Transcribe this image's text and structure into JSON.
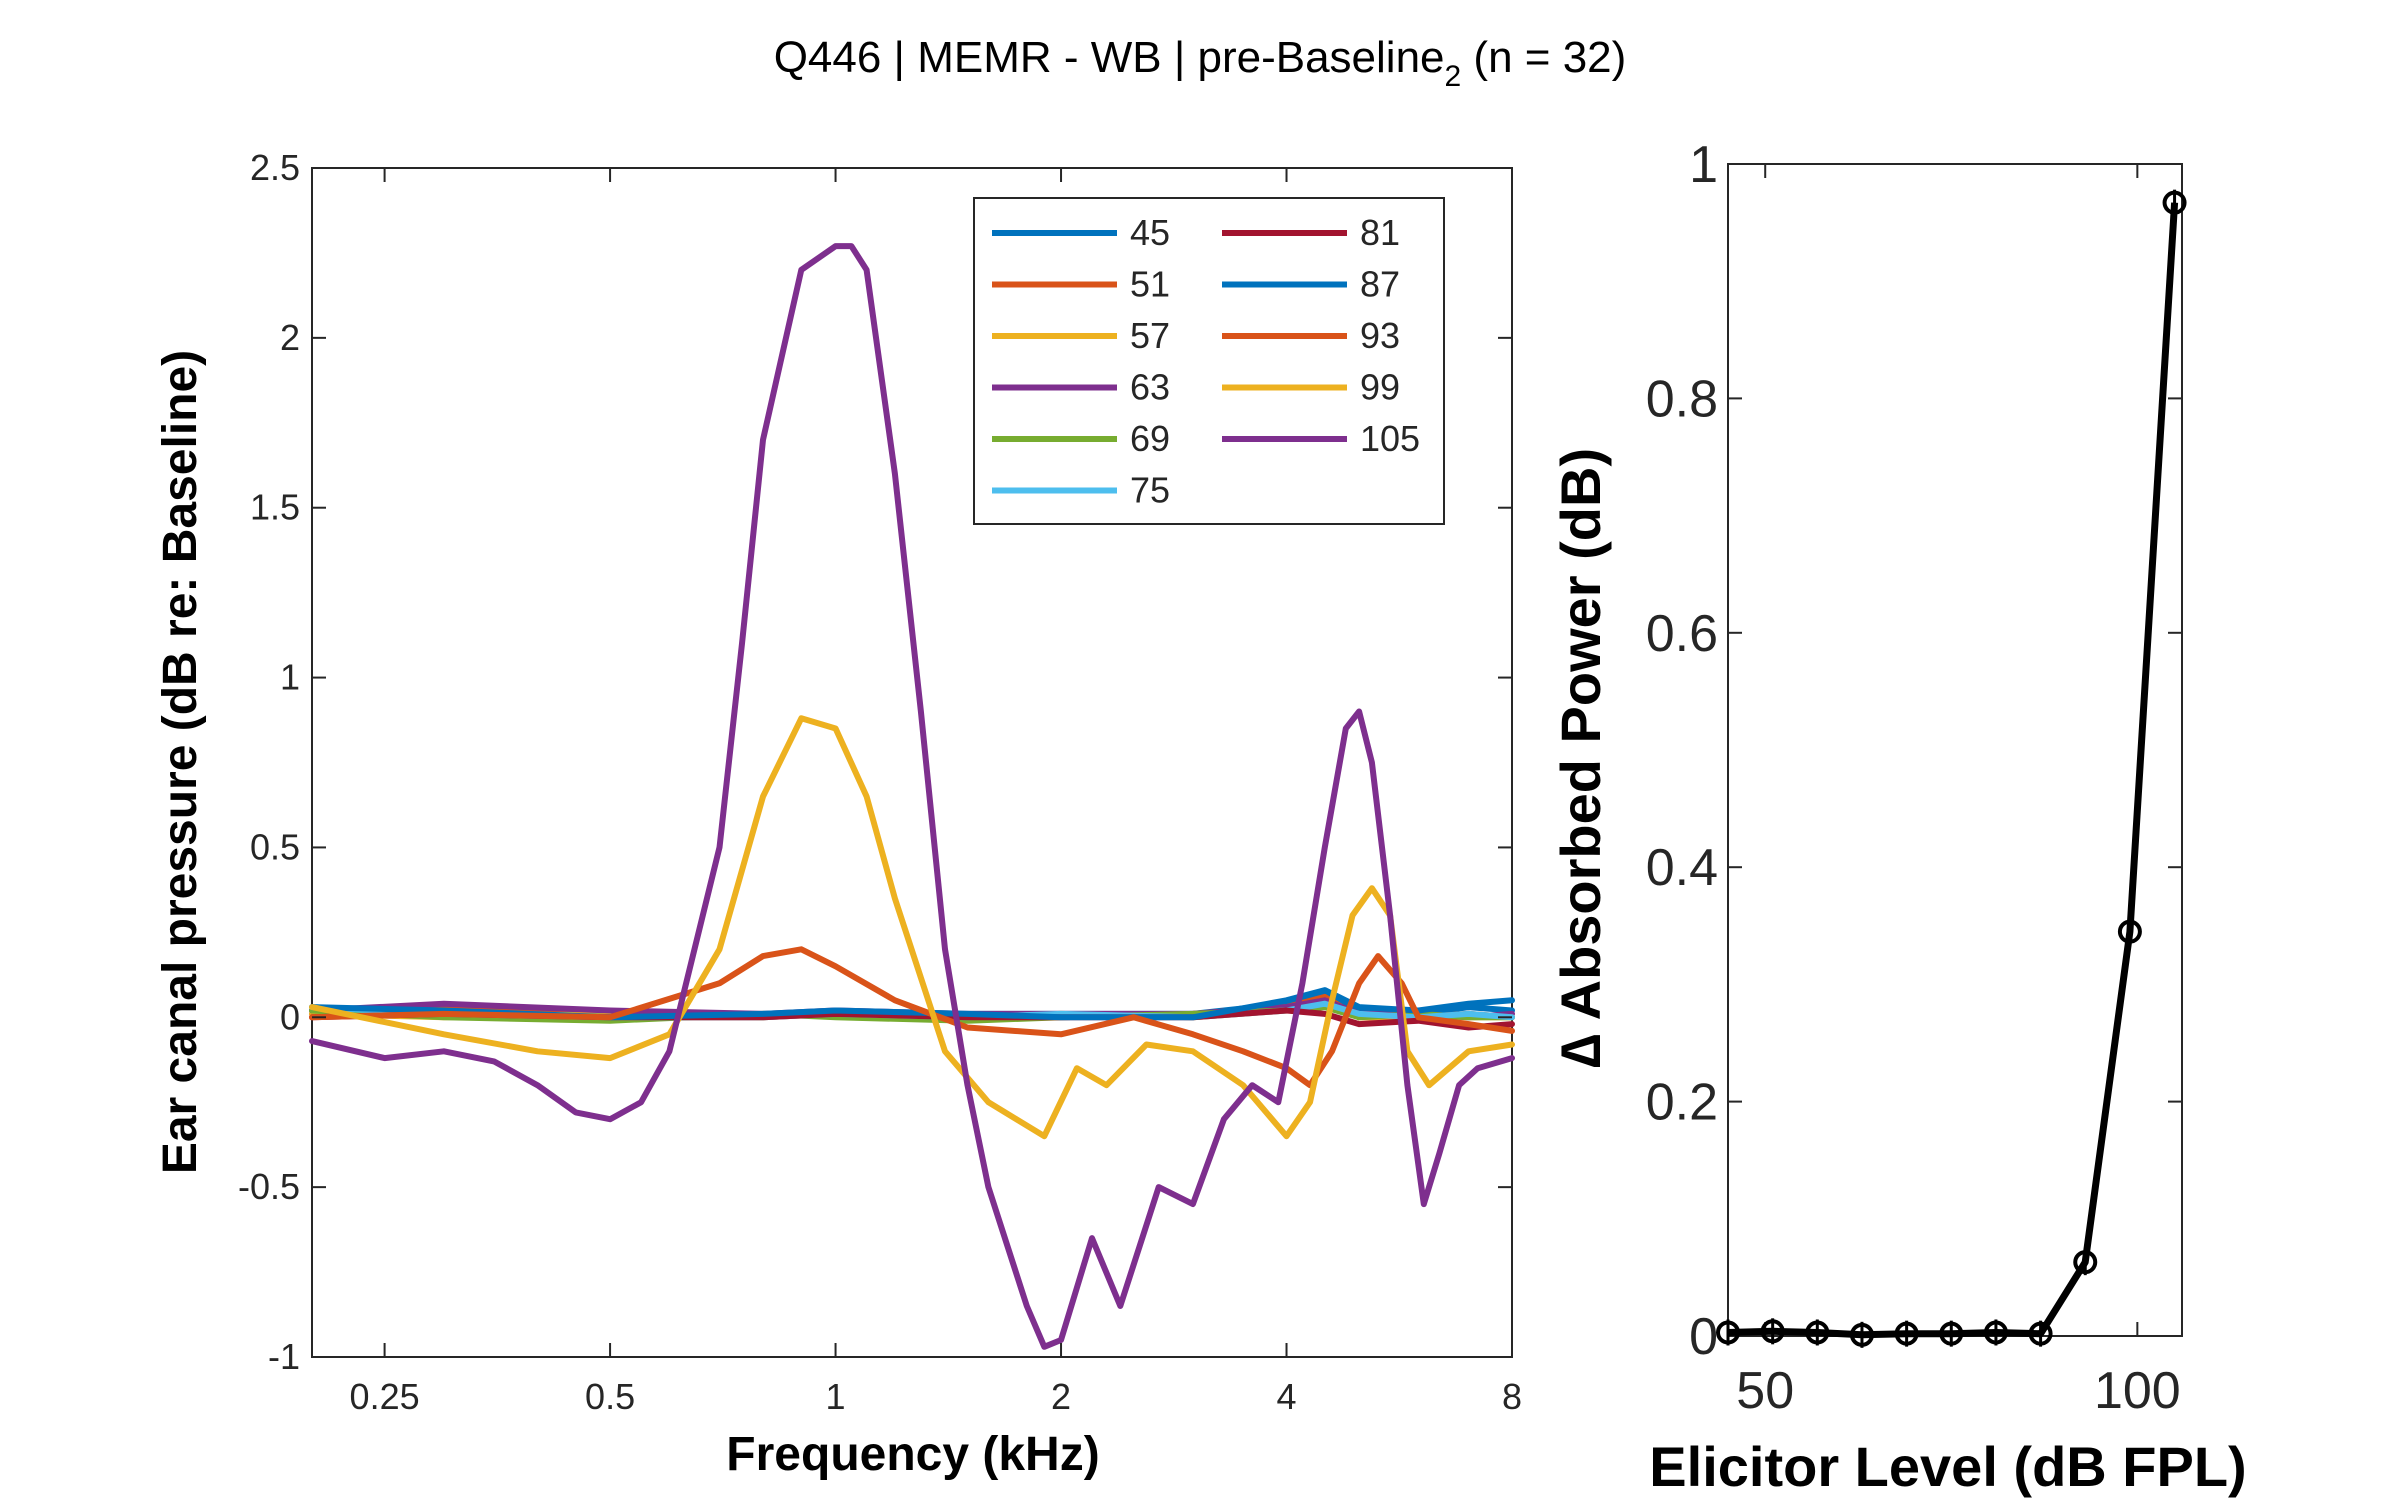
{
  "title_main": "Q446 | MEMR - WB | pre-Baseline",
  "title_sub": "2",
  "title_tail": " (n = 32)",
  "colors": {
    "s45": "#0072BD",
    "s51": "#D95319",
    "s57": "#EDB120",
    "s63": "#7E2F8E",
    "s69": "#77AC30",
    "s75": "#4DBEEE",
    "s81": "#A2142F",
    "axis": "#262626",
    "right_line": "#000000"
  },
  "chart_data": [
    {
      "type": "line",
      "title": "Q446 | MEMR - WB | pre-Baseline2 (n = 32)",
      "xlabel": "Frequency (kHz)",
      "ylabel": "Ear canal pressure (dB re: Baseline)",
      "xscale": "log",
      "xlim": [
        0.2,
        8
      ],
      "ylim": [
        -1,
        2.5
      ],
      "xticks": [
        0.25,
        0.5,
        1,
        2,
        4,
        8
      ],
      "xticklabels": [
        "0.25",
        "0.5",
        "1",
        "2",
        "4",
        "8"
      ],
      "yticks": [
        -1,
        -0.5,
        0,
        0.5,
        1,
        1.5,
        2,
        2.5
      ],
      "yticklabels": [
        "-1",
        "-0.5",
        "0",
        "0.5",
        "1",
        "1.5",
        "2",
        "2.5"
      ],
      "legend_position": "top-right",
      "series": [
        {
          "name": "45",
          "color_key": "s45",
          "x": [
            0.2,
            0.3,
            0.5,
            0.8,
            1,
            1.5,
            2,
            3,
            4,
            4.5,
            5,
            6,
            7,
            8
          ],
          "y": [
            0.02,
            0.02,
            0.01,
            0.01,
            0.01,
            0.01,
            0.01,
            0.01,
            0.04,
            0.07,
            0.02,
            0.01,
            0.03,
            0.02
          ]
        },
        {
          "name": "51",
          "color_key": "s51",
          "x": [
            0.2,
            0.3,
            0.5,
            0.8,
            1,
            1.5,
            2,
            3,
            4,
            4.5,
            5,
            6,
            7,
            8
          ],
          "y": [
            0.01,
            0.03,
            0.0,
            0.0,
            0.01,
            0.0,
            0.0,
            0.01,
            0.03,
            0.06,
            0.0,
            0.0,
            0.01,
            0.0
          ]
        },
        {
          "name": "57",
          "color_key": "s57",
          "x": [
            0.2,
            0.3,
            0.5,
            0.8,
            1,
            1.5,
            2,
            3,
            4,
            4.5,
            5,
            6,
            7,
            8
          ],
          "y": [
            0.01,
            0.0,
            0.01,
            0.0,
            0.02,
            0.0,
            0.01,
            0.0,
            0.02,
            0.04,
            0.0,
            0.0,
            0.0,
            0.0
          ]
        },
        {
          "name": "63",
          "color_key": "s63",
          "x": [
            0.2,
            0.3,
            0.5,
            0.8,
            1,
            1.5,
            2,
            3,
            4,
            4.5,
            5,
            6,
            7,
            8
          ],
          "y": [
            0.02,
            0.04,
            0.02,
            0.01,
            0.02,
            0.01,
            0.01,
            0.01,
            0.03,
            0.05,
            0.01,
            0.01,
            0.0,
            0.01
          ]
        },
        {
          "name": "69",
          "color_key": "s69",
          "x": [
            0.2,
            0.3,
            0.5,
            0.8,
            1,
            1.5,
            2,
            3,
            4,
            4.5,
            5,
            6,
            7,
            8
          ],
          "y": [
            0.02,
            0.0,
            -0.01,
            0.01,
            0.0,
            -0.01,
            0.0,
            0.01,
            0.02,
            0.03,
            0.0,
            0.01,
            0.0,
            0.0
          ]
        },
        {
          "name": "75",
          "color_key": "s75",
          "x": [
            0.2,
            0.3,
            0.5,
            0.8,
            1,
            1.5,
            2,
            3,
            4,
            4.5,
            5,
            6,
            7,
            8
          ],
          "y": [
            0.03,
            0.01,
            0.0,
            0.0,
            0.01,
            0.0,
            0.01,
            0.0,
            0.02,
            0.04,
            0.01,
            0.0,
            0.01,
            0.0
          ]
        },
        {
          "name": "81",
          "color_key": "s81",
          "x": [
            0.2,
            0.3,
            0.5,
            0.8,
            1,
            1.5,
            2,
            3,
            4,
            4.5,
            5,
            6,
            7,
            8
          ],
          "y": [
            0.0,
            0.01,
            0.0,
            0.0,
            0.01,
            0.0,
            0.0,
            0.0,
            0.02,
            0.01,
            -0.02,
            -0.01,
            -0.03,
            -0.02
          ]
        },
        {
          "name": "87",
          "color_key": "s45",
          "x": [
            0.2,
            0.3,
            0.5,
            0.8,
            1,
            1.5,
            2,
            3,
            4,
            4.5,
            5,
            6,
            7,
            8
          ],
          "y": [
            0.03,
            0.02,
            0.0,
            0.01,
            0.02,
            0.01,
            0.0,
            0.0,
            0.05,
            0.08,
            0.03,
            0.02,
            0.04,
            0.05
          ]
        },
        {
          "name": "93",
          "color_key": "s51",
          "x": [
            0.2,
            0.3,
            0.5,
            0.7,
            0.8,
            0.9,
            1.0,
            1.2,
            1.5,
            2,
            2.5,
            3,
            3.5,
            4,
            4.3,
            4.6,
            5,
            5.3,
            5.7,
            6,
            7,
            8
          ],
          "y": [
            0.0,
            0.01,
            0.0,
            0.1,
            0.18,
            0.2,
            0.15,
            0.05,
            -0.03,
            -0.05,
            0.0,
            -0.05,
            -0.1,
            -0.15,
            -0.2,
            -0.1,
            0.1,
            0.18,
            0.1,
            0.0,
            -0.02,
            -0.04
          ]
        },
        {
          "name": "99",
          "color_key": "s57",
          "x": [
            0.2,
            0.3,
            0.4,
            0.5,
            0.6,
            0.7,
            0.8,
            0.9,
            1.0,
            1.1,
            1.2,
            1.4,
            1.6,
            1.9,
            2.1,
            2.3,
            2.6,
            3,
            3.5,
            4,
            4.3,
            4.6,
            4.9,
            5.2,
            5.5,
            5.8,
            6.2,
            7,
            8
          ],
          "y": [
            0.03,
            -0.05,
            -0.1,
            -0.12,
            -0.05,
            0.2,
            0.65,
            0.88,
            0.85,
            0.65,
            0.35,
            -0.1,
            -0.25,
            -0.35,
            -0.15,
            -0.2,
            -0.08,
            -0.1,
            -0.2,
            -0.35,
            -0.25,
            0.05,
            0.3,
            0.38,
            0.3,
            -0.1,
            -0.2,
            -0.1,
            -0.08
          ]
        },
        {
          "name": "105",
          "color_key": "s63",
          "x": [
            0.2,
            0.25,
            0.3,
            0.35,
            0.4,
            0.45,
            0.5,
            0.55,
            0.6,
            0.7,
            0.75,
            0.8,
            0.9,
            1.0,
            1.05,
            1.1,
            1.2,
            1.3,
            1.4,
            1.5,
            1.6,
            1.8,
            1.9,
            2.0,
            2.2,
            2.4,
            2.7,
            3.0,
            3.3,
            3.6,
            3.9,
            4.2,
            4.5,
            4.8,
            5.0,
            5.2,
            5.5,
            5.8,
            6.1,
            6.4,
            6.8,
            7.2,
            8
          ],
          "y": [
            -0.07,
            -0.12,
            -0.1,
            -0.13,
            -0.2,
            -0.28,
            -0.3,
            -0.25,
            -0.1,
            0.5,
            1.1,
            1.7,
            2.2,
            2.27,
            2.27,
            2.2,
            1.6,
            0.9,
            0.2,
            -0.2,
            -0.5,
            -0.85,
            -0.97,
            -0.95,
            -0.65,
            -0.85,
            -0.5,
            -0.55,
            -0.3,
            -0.2,
            -0.25,
            0.1,
            0.5,
            0.85,
            0.9,
            0.75,
            0.3,
            -0.2,
            -0.55,
            -0.4,
            -0.2,
            -0.15,
            -0.12
          ]
        }
      ]
    },
    {
      "type": "line",
      "xlabel": "Elicitor Level (dB FPL)",
      "ylabel": "∆ Absorbed Power (dB)",
      "xlim": [
        45,
        106
      ],
      "ylim": [
        0,
        1
      ],
      "xticks": [
        50,
        100
      ],
      "xticklabels": [
        "50",
        "100"
      ],
      "yticks": [
        0,
        0.2,
        0.4,
        0.6,
        0.8,
        1
      ],
      "yticklabels": [
        "0",
        "0.2",
        "0.4",
        "0.6",
        "0.8",
        "1"
      ],
      "grid": false,
      "series": [
        {
          "x": [
            45,
            51,
            57,
            63,
            69,
            75,
            81,
            87,
            93,
            99,
            105
          ],
          "y": [
            0.003,
            0.004,
            0.003,
            0.001,
            0.002,
            0.002,
            0.003,
            0.002,
            0.063,
            0.345,
            0.967
          ]
        }
      ]
    }
  ]
}
